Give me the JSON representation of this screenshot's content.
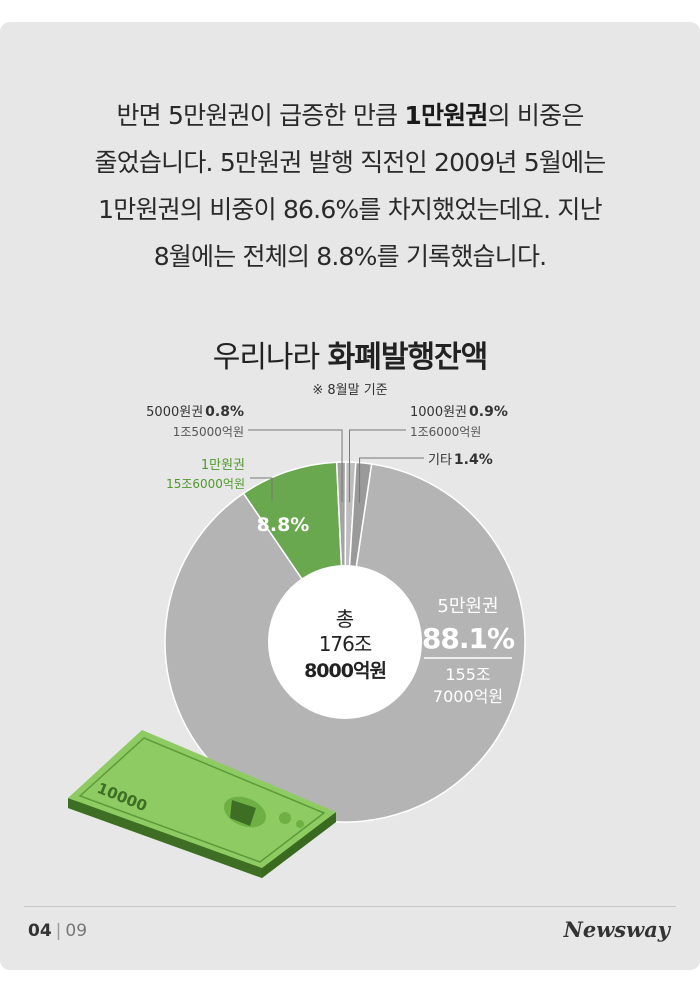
{
  "paragraph": {
    "l1a": "반면 5만원권이 급증한 만큼 ",
    "l1b": "1만원권",
    "l1c": "의 비중은",
    "l2": "줄었습니다. 5만원권 발행 직전인 2009년 5월에는",
    "l3": "1만원권의 비중이 86.6%를 차지했었는데요. 지난",
    "l4": "8월에는 전체의 8.8%를 기록했습니다."
  },
  "chart_data": {
    "type": "pie",
    "title_a": "우리나라 ",
    "title_b": "화폐발행잔액",
    "note": "※ 8월말 기준",
    "center": {
      "l1": "총",
      "l2": "176조",
      "l3": "8000억원"
    },
    "slices": [
      {
        "name": "5만원권",
        "value": 88.1,
        "pct_label": "88.1%",
        "amount": [
          "155조",
          "7000억원"
        ],
        "color": "#b4b4b4"
      },
      {
        "name": "1만원권",
        "value": 8.8,
        "pct_label": "8.8%",
        "amount": [
          "15조6000억원"
        ],
        "color": "#6aa84f"
      },
      {
        "name": "5000원권",
        "value": 0.8,
        "pct_label": "0.8%",
        "amount": [
          "1조5000억원"
        ],
        "color": "#a3a3a3"
      },
      {
        "name": "1000원권",
        "value": 0.9,
        "pct_label": "0.9%",
        "amount": [
          "1조6000억원"
        ],
        "color": "#bdbdbd"
      },
      {
        "name": "기타",
        "value": 1.4,
        "pct_label": "1.4%",
        "amount": [],
        "color": "#9a9a9a"
      }
    ]
  },
  "banknote": {
    "denomination": "10000"
  },
  "footer": {
    "page": "04",
    "separator": "|",
    "total": "09",
    "brand": "Newsway"
  }
}
